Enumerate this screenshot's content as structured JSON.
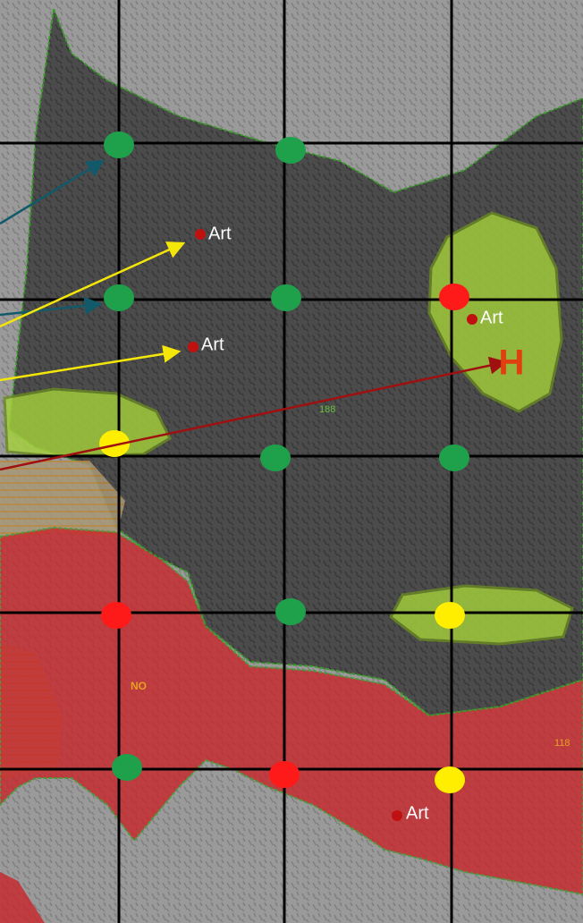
{
  "map": {
    "marker_labels": [
      "Art",
      "Art",
      "Art",
      "Art"
    ],
    "helipad": "H",
    "zone_label": "NO",
    "area_labels": [
      "188",
      "118"
    ]
  }
}
